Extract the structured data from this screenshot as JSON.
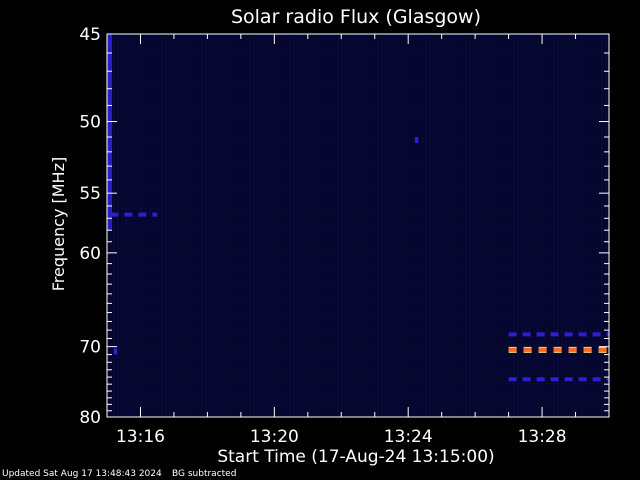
{
  "chart_data": {
    "type": "heatmap",
    "title": "Solar radio Flux (Glasgow)",
    "xlabel": "Start Time (17-Aug-24 13:15:00)",
    "ylabel": "Frequency [MHz]",
    "x_ticks": [
      "13:16",
      "13:20",
      "13:24",
      "13:28"
    ],
    "x_tick_minutes": [
      1,
      5,
      9,
      13
    ],
    "x_range_minutes": [
      0,
      15
    ],
    "y_ticks": [
      45,
      50,
      55,
      60,
      70,
      80
    ],
    "y_range": [
      45,
      80
    ],
    "y_scale": "reciprocal",
    "background_color": "#05062e",
    "colors": {
      "low": "#05062e",
      "medium": "#2a21d6",
      "high": "#ff6a1e",
      "peak": "#ffd27a"
    },
    "features": [
      {
        "label": "background strip",
        "t_start": 0,
        "t_end": 0.15,
        "f_start": 45,
        "f_end": 58,
        "level": "medium"
      },
      {
        "label": "dashed line 56.7 MHz",
        "t_start": 0.1,
        "t_end": 1.5,
        "f": 56.7,
        "level": "medium"
      },
      {
        "label": "spot 70.6 MHz",
        "t_start": 0.2,
        "t_end": 0.3,
        "f": 70.6,
        "level": "medium"
      },
      {
        "label": "spot 51.2 MHz",
        "t_start": 9.2,
        "t_end": 9.3,
        "f": 51.2,
        "level": "medium"
      },
      {
        "label": "dashed line 68.5 MHz",
        "t_start": 12.0,
        "t_end": 15.0,
        "f": 68.5,
        "level": "medium"
      },
      {
        "label": "dashed line 70.4 MHz",
        "t_start": 12.0,
        "t_end": 15.0,
        "f": 70.4,
        "level": "high"
      },
      {
        "label": "dashed line 74.3 MHz",
        "t_start": 12.0,
        "t_end": 15.0,
        "f": 74.3,
        "level": "medium"
      }
    ]
  },
  "footer": {
    "updated": "Updated Sat Aug 17 13:48:43 2024",
    "bg_note": "BG subtracted"
  }
}
